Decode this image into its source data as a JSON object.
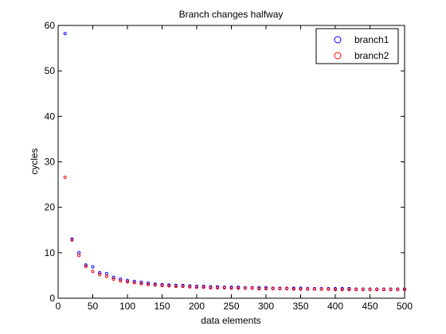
{
  "chart_data": {
    "type": "scatter",
    "title": "Branch changes halfway",
    "xlabel": "data elements",
    "ylabel": "cycles",
    "xlim": [
      0,
      500
    ],
    "ylim": [
      0,
      60
    ],
    "xticks": [
      0,
      50,
      100,
      150,
      200,
      250,
      300,
      350,
      400,
      450,
      500
    ],
    "yticks": [
      0,
      10,
      20,
      30,
      40,
      50,
      60
    ],
    "grid": false,
    "legend_position": "top-right",
    "marker": "circle",
    "series": [
      {
        "name": "branch1",
        "color": "#0000ff",
        "x": [
          10,
          20,
          30,
          40,
          50,
          60,
          70,
          80,
          90,
          100,
          110,
          120,
          130,
          140,
          150,
          160,
          170,
          180,
          190,
          200,
          210,
          220,
          230,
          240,
          250,
          260,
          270,
          280,
          290,
          300,
          310,
          320,
          330,
          340,
          350,
          360,
          370,
          380,
          390,
          400,
          410,
          420,
          430,
          440,
          450,
          460,
          470,
          480,
          490,
          500
        ],
        "values": [
          58.2,
          13.0,
          10.0,
          7.3,
          6.9,
          5.6,
          5.4,
          4.6,
          4.2,
          3.9,
          3.7,
          3.5,
          3.3,
          3.1,
          3.0,
          2.9,
          2.8,
          2.8,
          2.7,
          2.6,
          2.6,
          2.5,
          2.5,
          2.4,
          2.4,
          2.4,
          2.3,
          2.3,
          2.3,
          2.3,
          2.2,
          2.2,
          2.2,
          2.2,
          2.2,
          2.1,
          2.1,
          2.1,
          2.1,
          2.1,
          2.1,
          2.1,
          2.0,
          2.0,
          2.0,
          2.0,
          2.0,
          2.0,
          2.0,
          2.0
        ]
      },
      {
        "name": "branch2",
        "color": "#ff0000",
        "x": [
          10,
          20,
          30,
          40,
          50,
          60,
          70,
          80,
          90,
          100,
          110,
          120,
          130,
          140,
          150,
          160,
          170,
          180,
          190,
          200,
          210,
          220,
          230,
          240,
          250,
          260,
          270,
          280,
          290,
          300,
          310,
          320,
          330,
          340,
          350,
          360,
          370,
          380,
          390,
          400,
          410,
          420,
          430,
          440,
          450,
          460,
          470,
          480,
          490,
          500
        ],
        "values": [
          26.6,
          12.8,
          9.4,
          7.0,
          5.9,
          5.2,
          4.8,
          4.2,
          3.8,
          3.6,
          3.4,
          3.2,
          3.0,
          2.9,
          2.8,
          2.7,
          2.6,
          2.6,
          2.5,
          2.4,
          2.4,
          2.3,
          2.3,
          2.3,
          2.2,
          2.2,
          2.2,
          2.2,
          2.1,
          2.1,
          2.1,
          2.1,
          2.1,
          2.0,
          2.0,
          2.0,
          2.0,
          2.0,
          2.0,
          1.9,
          1.9,
          1.9,
          1.9,
          1.9,
          1.9,
          1.9,
          1.9,
          1.9,
          1.9,
          1.9
        ]
      }
    ]
  }
}
